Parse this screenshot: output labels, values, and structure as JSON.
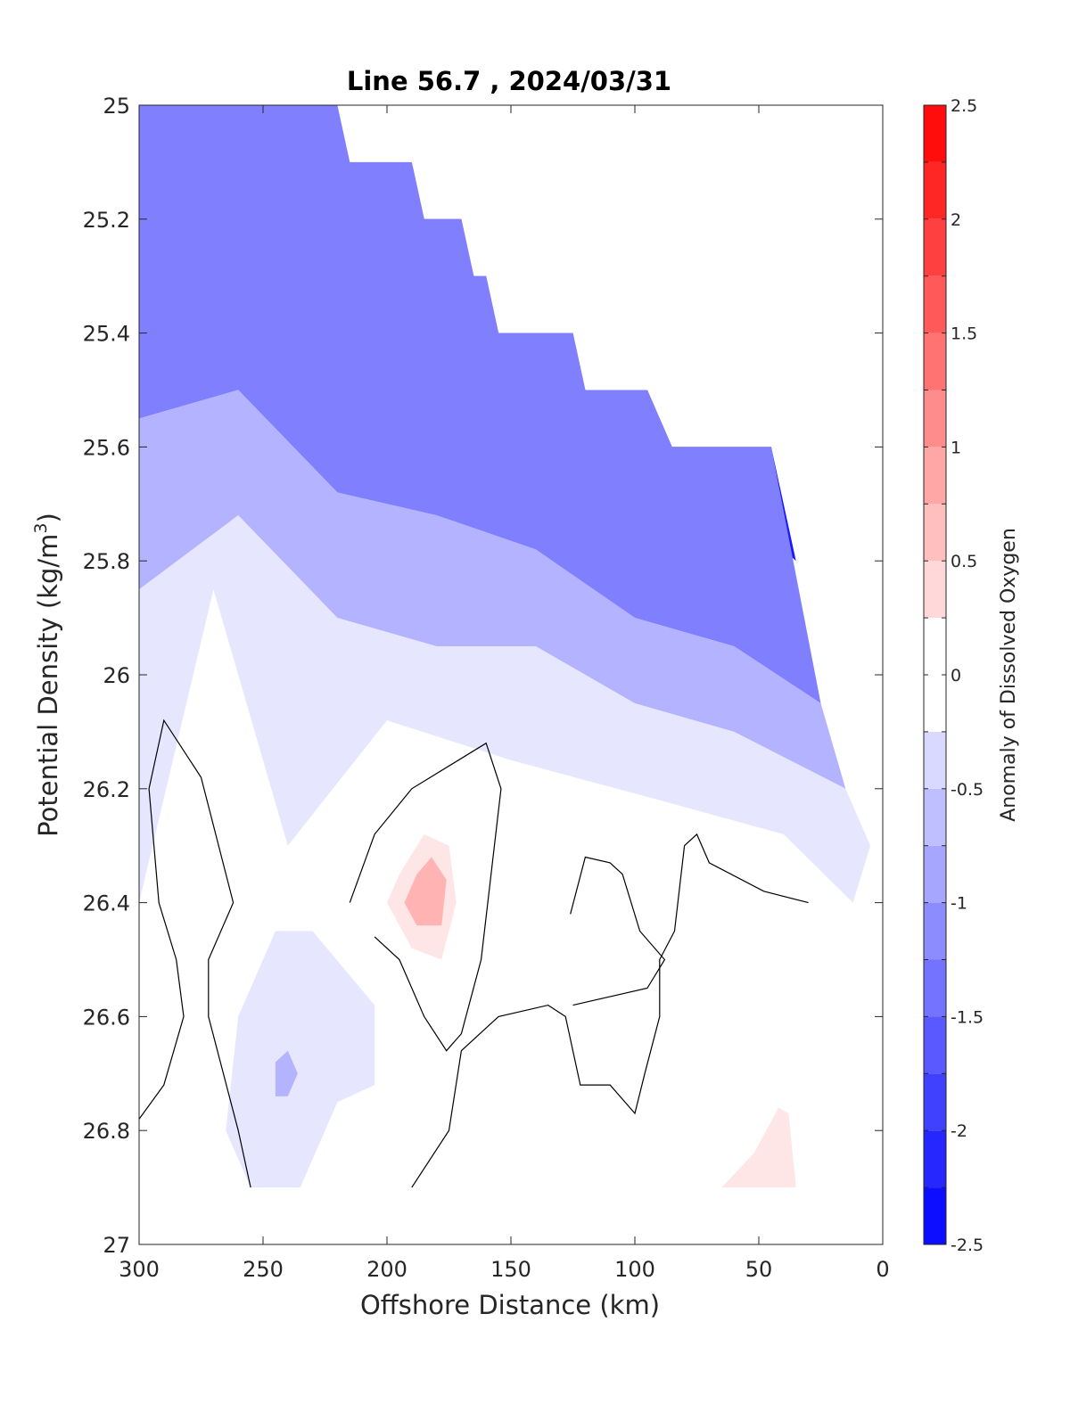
{
  "chart_data": {
    "type": "contour",
    "title": "Line 56.7 , 2024/03/31",
    "xlabel": "Offshore Distance (km)",
    "ylabel": "Potential Density (kg/m",
    "ylabel_superscript": "3",
    "ylabel_suffix": ")",
    "xlim": [
      0,
      300
    ],
    "x_reversed": true,
    "ylim": [
      25,
      27
    ],
    "y_reversed": true,
    "x_ticks": [
      300,
      250,
      200,
      150,
      100,
      50,
      0
    ],
    "y_ticks": [
      25,
      25.2,
      25.4,
      25.6,
      25.8,
      26,
      26.2,
      26.4,
      26.6,
      26.8,
      27
    ],
    "y_tick_labels": [
      "25",
      "25.2",
      "25.4",
      "25.6",
      "25.8",
      "26",
      "26.2",
      "26.4",
      "26.6",
      "26.8",
      "27"
    ],
    "colorbar": {
      "label": "Anomaly of Dissolved Oxygen",
      "range": [
        -2.5,
        2.5
      ],
      "step": 0.25,
      "ticks": [
        2.5,
        2,
        1.5,
        1,
        0.5,
        0,
        -0.5,
        -1,
        -1.5,
        -2,
        -2.5
      ],
      "tick_labels": [
        "2.5",
        "2",
        "1.5",
        "1",
        "0.5",
        "0",
        "-0.5",
        "-1",
        "-1.5",
        "-2",
        "-2.5"
      ]
    },
    "data_boundary": [
      [
        300,
        25
      ],
      [
        220,
        25
      ],
      [
        215,
        25.1
      ],
      [
        190,
        25.1
      ],
      [
        185,
        25.2
      ],
      [
        170,
        25.2
      ],
      [
        165,
        25.3
      ],
      [
        160,
        25.3
      ],
      [
        155,
        25.4
      ],
      [
        125,
        25.4
      ],
      [
        120,
        25.5
      ],
      [
        95,
        25.5
      ],
      [
        85,
        25.6
      ],
      [
        45,
        25.6
      ],
      [
        35,
        25.8
      ],
      [
        25,
        26.1
      ],
      [
        15,
        26.2
      ],
      [
        10,
        26.2
      ],
      [
        5,
        26.3
      ],
      [
        12,
        26.4
      ],
      [
        20,
        26.25
      ],
      [
        25,
        26.45
      ],
      [
        300,
        26.45
      ],
      [
        300,
        26.9
      ],
      [
        35,
        26.9
      ]
    ],
    "contour_regions": [
      {
        "level": -2.25,
        "points": [
          [
            120,
            25.5
          ],
          [
            95,
            25.5
          ],
          [
            85,
            25.6
          ],
          [
            45,
            25.6
          ],
          [
            35,
            25.8
          ],
          [
            60,
            25.7
          ],
          [
            80,
            25.65
          ],
          [
            110,
            25.58
          ]
        ]
      },
      {
        "level": -1.75,
        "points": [
          [
            190,
            25.1
          ],
          [
            185,
            25.2
          ],
          [
            170,
            25.2
          ],
          [
            165,
            25.3
          ],
          [
            160,
            25.3
          ],
          [
            155,
            25.4
          ],
          [
            125,
            25.4
          ],
          [
            120,
            25.5
          ],
          [
            95,
            25.5
          ],
          [
            85,
            25.6
          ],
          [
            45,
            25.6
          ],
          [
            30,
            25.95
          ],
          [
            60,
            25.8
          ],
          [
            100,
            25.75
          ],
          [
            140,
            25.62
          ],
          [
            170,
            25.5
          ],
          [
            180,
            25.35
          ]
        ]
      },
      {
        "level": -1.25,
        "points": [
          [
            300,
            25
          ],
          [
            220,
            25
          ],
          [
            215,
            25.1
          ],
          [
            190,
            25.1
          ],
          [
            185,
            25.2
          ],
          [
            170,
            25.2
          ],
          [
            165,
            25.3
          ],
          [
            160,
            25.3
          ],
          [
            155,
            25.4
          ],
          [
            125,
            25.4
          ],
          [
            120,
            25.5
          ],
          [
            95,
            25.5
          ],
          [
            85,
            25.6
          ],
          [
            45,
            25.6
          ],
          [
            25,
            26.05
          ],
          [
            60,
            25.95
          ],
          [
            100,
            25.9
          ],
          [
            140,
            25.78
          ],
          [
            180,
            25.72
          ],
          [
            220,
            25.68
          ],
          [
            260,
            25.5
          ],
          [
            300,
            25.55
          ]
        ]
      },
      {
        "level": -0.75,
        "points": [
          [
            300,
            25.55
          ],
          [
            260,
            25.5
          ],
          [
            220,
            25.68
          ],
          [
            180,
            25.72
          ],
          [
            140,
            25.78
          ],
          [
            100,
            25.9
          ],
          [
            60,
            25.95
          ],
          [
            25,
            26.05
          ],
          [
            15,
            26.2
          ],
          [
            60,
            26.1
          ],
          [
            100,
            26.05
          ],
          [
            140,
            25.95
          ],
          [
            180,
            25.95
          ],
          [
            220,
            25.9
          ],
          [
            260,
            25.72
          ],
          [
            300,
            25.85
          ]
        ]
      },
      {
        "level": -0.25,
        "points": [
          [
            300,
            25.85
          ],
          [
            260,
            25.72
          ],
          [
            220,
            25.9
          ],
          [
            180,
            25.95
          ],
          [
            140,
            25.95
          ],
          [
            100,
            26.05
          ],
          [
            60,
            26.1
          ],
          [
            15,
            26.2
          ],
          [
            5,
            26.3
          ],
          [
            12,
            26.4
          ],
          [
            40,
            26.28
          ],
          [
            90,
            26.22
          ],
          [
            150,
            26.15
          ],
          [
            200,
            26.08
          ],
          [
            240,
            26.3
          ],
          [
            270,
            25.85
          ],
          [
            300,
            26.4
          ]
        ]
      },
      {
        "level": -0.25,
        "points": [
          [
            265,
            26.8
          ],
          [
            255,
            26.9
          ],
          [
            235,
            26.9
          ],
          [
            220,
            26.75
          ],
          [
            205,
            26.72
          ],
          [
            205,
            26.58
          ],
          [
            230,
            26.45
          ],
          [
            245,
            26.45
          ],
          [
            260,
            26.6
          ]
        ]
      },
      {
        "level": -0.75,
        "points": [
          [
            245,
            26.68
          ],
          [
            240,
            26.66
          ],
          [
            236,
            26.7
          ],
          [
            240,
            26.74
          ],
          [
            245,
            26.74
          ]
        ]
      },
      {
        "level": 0.25,
        "points": [
          [
            195,
            26.35
          ],
          [
            185,
            26.28
          ],
          [
            175,
            26.3
          ],
          [
            172,
            26.4
          ],
          [
            178,
            26.5
          ],
          [
            190,
            26.48
          ],
          [
            200,
            26.4
          ]
        ]
      },
      {
        "level": 0.75,
        "points": [
          [
            188,
            26.35
          ],
          [
            182,
            26.32
          ],
          [
            176,
            26.36
          ],
          [
            178,
            26.44
          ],
          [
            188,
            26.44
          ],
          [
            193,
            26.4
          ]
        ]
      },
      {
        "level": 0.25,
        "points": [
          [
            65,
            26.9
          ],
          [
            35,
            26.9
          ],
          [
            38,
            26.77
          ],
          [
            42,
            26.76
          ],
          [
            52,
            26.84
          ]
        ]
      }
    ],
    "contour_lines": [
      {
        "level": 0,
        "points": [
          [
            300,
            26.78
          ],
          [
            290,
            26.72
          ],
          [
            282,
            26.6
          ],
          [
            285,
            26.5
          ],
          [
            292,
            26.4
          ],
          [
            296,
            26.2
          ],
          [
            290,
            26.08
          ],
          [
            275,
            26.18
          ],
          [
            262,
            26.4
          ],
          [
            272,
            26.5
          ],
          [
            272,
            26.6
          ],
          [
            260,
            26.8
          ],
          [
            255,
            26.9
          ]
        ]
      },
      {
        "level": 0,
        "points": [
          [
            215,
            26.4
          ],
          [
            205,
            26.28
          ],
          [
            190,
            26.2
          ],
          [
            160,
            26.12
          ],
          [
            154,
            26.2
          ],
          [
            162,
            26.5
          ],
          [
            170,
            26.63
          ],
          [
            176,
            26.66
          ],
          [
            185,
            26.6
          ],
          [
            195,
            26.5
          ],
          [
            205,
            26.46
          ]
        ]
      },
      {
        "level": 0,
        "points": [
          [
            126,
            26.42
          ],
          [
            120,
            26.32
          ],
          [
            110,
            26.33
          ],
          [
            105,
            26.35
          ],
          [
            98,
            26.45
          ],
          [
            88,
            26.5
          ],
          [
            95,
            26.55
          ],
          [
            115,
            26.57
          ],
          [
            125,
            26.58
          ]
        ]
      },
      {
        "level": 0,
        "points": [
          [
            190,
            26.9
          ],
          [
            175,
            26.8
          ],
          [
            170,
            26.66
          ],
          [
            155,
            26.6
          ],
          [
            135,
            26.58
          ],
          [
            128,
            26.6
          ],
          [
            122,
            26.72
          ],
          [
            110,
            26.72
          ],
          [
            100,
            26.77
          ],
          [
            96,
            26.7
          ],
          [
            90,
            26.6
          ],
          [
            90,
            26.5
          ],
          [
            84,
            26.45
          ],
          [
            80,
            26.3
          ],
          [
            75,
            26.28
          ],
          [
            70,
            26.33
          ],
          [
            48,
            26.38
          ],
          [
            30,
            26.4
          ]
        ]
      }
    ]
  }
}
